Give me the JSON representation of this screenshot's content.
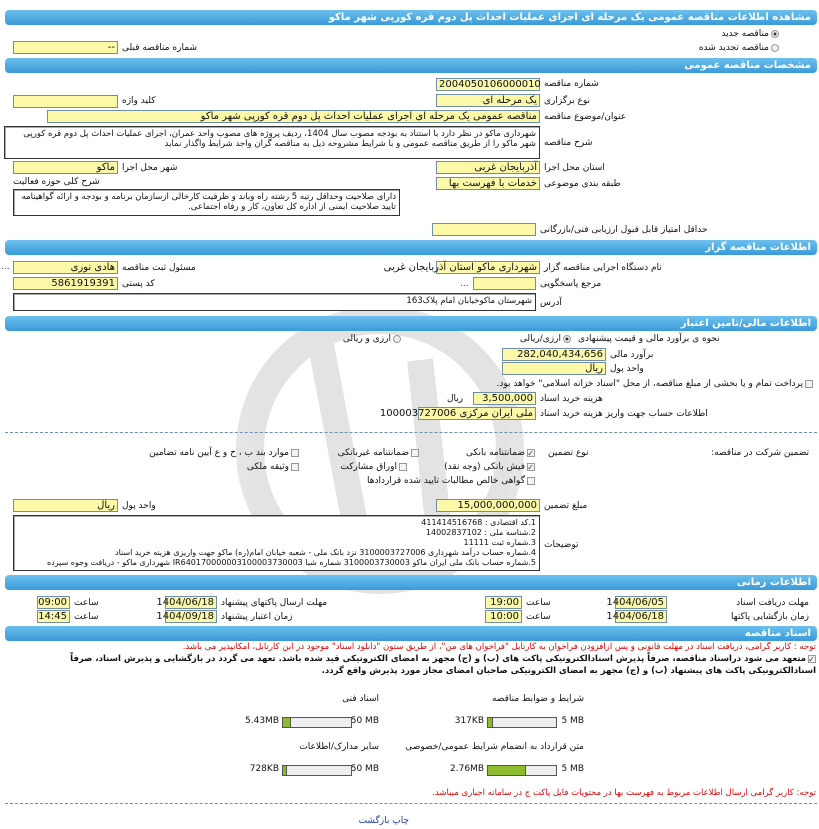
{
  "title": "مشاهده اطلاعات مناقصه عمومی یک مرحله ای اجرای عملیات احداث پل دوم قره کورپی شهر ماکو",
  "tender_type": {
    "new_label": "مناقصه جدید",
    "renewed_label": "مناقصه تجدید شده",
    "selected": "new",
    "prev_number_label": "شماره مناقصه قبلی",
    "prev_number_value": "--"
  },
  "general": {
    "header": "مشخصات مناقصه عمومی",
    "number_label": "شماره مناقصه",
    "number_value": "2004050106000010",
    "holding_label": "نوع برگزاری",
    "holding_value": "یک مرحله ای",
    "keyword_label": "کلید واژه",
    "keyword_value": "",
    "subject_label": "عنوان/موضوع مناقصه",
    "subject_value": "مناقصه عمومی یک مرحله ای اجرای عملیات احداث پل دوم قره کورپی شهر ماکو",
    "desc_label": "شرح مناقصه",
    "desc_value": "شهرداری ماکو در نظر دارد با استناد به بودجه مصوب سال 1404، ردیف پروژه های مصوب واحد عمران، اجرای عملیات احداث پل دوم قره کورپی شهر ماکو را از طریق مناقصه عمومی و با شرایط مشروحه ذیل به مناقصه گران واجد شرایط واگذار نماید",
    "province_label": "استان محل اجرا",
    "province_value": "آذربایجان غربی",
    "city_label": "شهر محل اجرا",
    "city_value": "ماکو",
    "category_label": "طبقه بندی موضوعی",
    "category_value": "خدمات با فهرست بها",
    "activity_label": "شرح کلی حوزه فعالیت",
    "activity_value": "دارای صلاحیت وحداقل رتبه 5 رشته راه وباند و ظرفیت کارخالی ازسازمان برنامه و بودجه و ارائه گواهینامه تایید صلاحیت ایمنی از اداره کل تعاون، کار و رفاه اجتماعی.",
    "min_score_label": "حداقل امتیاز قابل قبول ارزیابی فنی/بازرگانی",
    "min_score_value": ""
  },
  "organizer": {
    "header": "اطلاعات مناقصه گزار",
    "org_label": "نام دستگاه اجرایی مناقصه گزار",
    "org_value": "شهرداری ماکو استان آذربایجان غربی",
    "resp_label": "مسئول ثبت مناقصه",
    "resp_value": "هادی نوری",
    "more": "...",
    "ref_label": "مرجع پاسخگویی",
    "ref_value": "",
    "postal_label": "کد پستی",
    "postal_value": "5861919391",
    "address_label": "آدرس",
    "address_value": "شهرستان ماکوخیابان امام پلاک163"
  },
  "finance": {
    "header": "اطلاعات مالی/تامین اعتبار",
    "method_label": "نحوه ی برآورد مالی و قیمت پیشنهادی",
    "opt1": "ارزی/ریالی",
    "opt2": "ارزی و ریالی",
    "selected": "opt1",
    "estimate_label": "برآورد مالی",
    "estimate_value": "282,040,434,656",
    "currency_label": "واحد پول",
    "currency_value": "ریال",
    "treasury_label": "پرداخت تمام و یا بخشی از مبلغ مناقصه، از محل \"اسناد خزانه اسلامی\" خواهد بود.",
    "treasury_checked": false,
    "docfee_label": "هزینه خرید اسناد",
    "docfee_value": "3,500,000",
    "docfee_unit": "ریال",
    "account_label": "اطلاعات حساب جهت واریز هزینه خرید اسناد",
    "account_value": "ملی ایران مرکزی 100003727006"
  },
  "guarantee": {
    "title": "تضمین شرکت در مناقصه:",
    "type_label": "نوع تضمین",
    "options": [
      {
        "label": "ضمانتنامه بانکی",
        "checked": true
      },
      {
        "label": "ضمانتنامه غیربانکی",
        "checked": false
      },
      {
        "label": "موارد بند ب ، ح و ع آیین نامه تضامین",
        "checked": false
      },
      {
        "label": "فیش بانکی (وجه نقد)",
        "checked": true
      },
      {
        "label": "اوراق مشارکت",
        "checked": false
      },
      {
        "label": "وثیقه ملکی",
        "checked": false
      },
      {
        "label": "گواهی خالص مطالبات تایید شده قراردادها",
        "checked": false
      }
    ],
    "amount_label": "مبلغ تضمین",
    "amount_value": "15,000,000,000",
    "currency_label": "واحد پول",
    "currency_value": "ریال",
    "notes_label": "توضیحات",
    "notes": [
      "1.کد اقتصادی : 411414516768",
      "2.شناسه ملی : 14002837102",
      "3.شماره ثبت 11111",
      "4.شماره حساب درآمد شهرداری 3100003727006 نزد بانک ملی - شعبه خیابان امام(ره) ماکو جهت واریزی هزینه خرید اسناد",
      "5.شماره حساب بانک ملی ایران ماکو 3100003730003 شماره شبا IR640170000003100003730003 شهرداری ماکو - دریافت وجوه سپرده"
    ]
  },
  "timing": {
    "header": "اطلاعات زمانی",
    "doc_deadline_label": "مهلت دریافت اسناد",
    "doc_deadline_date": "1404/06/05",
    "doc_deadline_time": "19:00",
    "submit_label": "مهلت ارسال پاکتهای پیشنهاد",
    "submit_date": "1404/06/18",
    "submit_time": "09:00",
    "opening_label": "زمان بازگشایی پاکتها",
    "opening_date": "1404/06/18",
    "opening_time": "10:00",
    "validity_label": "زمان اعتبار پیشنهاد",
    "validity_date": "1404/09/18",
    "validity_time": "14:45",
    "time_label": "ساعت"
  },
  "documents": {
    "header": "اسناد مناقصه",
    "note1": "توجه : کاربر گرامی، دریافت اسناد در مهلت قانونی و پس ازافزودن فراخوان به کارتابل \"فراخوان های من\"، از طریق ستون \"دانلود اسناد\" موجود در این کارتابل، امکانپذیر می باشد.",
    "commit": "متعهد می شود دراسناد مناقصه، صرفاً پذیرش اسنادالکترونیکی پاکت های (ب) و (ج) مجهز به امضای الکترونیکی قید شده باشد. تعهد می گردد در بازگشایی و پذیرش اسناد، صرفاً اسنادالکترونیکی پاکت های پیشنهاد (ب) و (ج) مجهز به امضای الکترونیکی صاحبان امضای مجاز مورد پذیرش واقع گردد.",
    "commit_checked": true,
    "files": [
      {
        "label": "شرایط و ضوابط مناقصه",
        "size": "317KB",
        "max": "5 MB",
        "fill": 0.06
      },
      {
        "label": "اسناد فنی",
        "size": "5.43MB",
        "max": "50 MB",
        "fill": 0.11
      },
      {
        "label": "متن قرارداد به انضمام شرایط عمومی/خصوصی",
        "size": "2.76MB",
        "max": "5 MB",
        "fill": 0.55
      },
      {
        "label": "سایر مدارک/اطلاعات",
        "size": "728KB",
        "max": "50 MB",
        "fill": 0.015
      }
    ],
    "note2": "توجه: کاربر گرامی ارسال اطلاعات مربوط به فهرست بها در محتویات فایل پاکت ج در سامانه اجباری میباشد."
  },
  "footer": {
    "print": "چاپ",
    "back": "بازگشت"
  },
  "colors": {
    "header_blue": "#3a9ad8",
    "input_yellow": "#fbf8a8",
    "red_note": "#e00000",
    "progress_green": "#8cbc2c"
  }
}
